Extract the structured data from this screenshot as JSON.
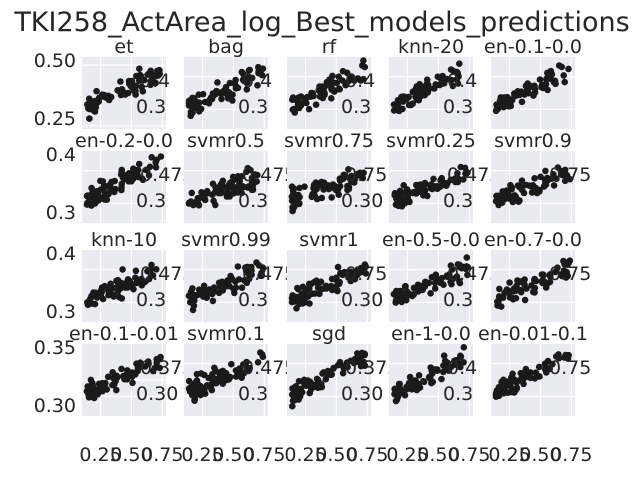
{
  "chart_data": {
    "type": "scatter",
    "title": "TKI258_ActArea_log_Best_models_predictions",
    "colors": {
      "panel_bg": "#eaeaf2",
      "grid": "#ffffff",
      "marker": "#1a1a1a",
      "text": "#262626"
    },
    "grid": true,
    "shared_x_ticks": [
      "0.25",
      "0.50",
      "0.75"
    ],
    "panels": [
      {
        "title": "et",
        "yticks": [
          "0.25",
          "0.50"
        ],
        "inset_labels": [
          "0.4",
          "0.3"
        ],
        "approx_x_range": [
          0.1,
          0.75
        ],
        "approx_y_range": [
          0.25,
          0.52
        ]
      },
      {
        "title": "bag",
        "yticks": [],
        "inset_labels": [
          "0.4",
          "0.3"
        ],
        "approx_x_range": [
          0.1,
          0.75
        ],
        "approx_y_range": [
          0.25,
          0.45
        ]
      },
      {
        "title": "rf",
        "yticks": [],
        "inset_labels": [
          "0.4",
          "0.3"
        ],
        "approx_x_range": [
          0.1,
          0.75
        ],
        "approx_y_range": [
          0.25,
          0.45
        ]
      },
      {
        "title": "knn-20",
        "yticks": [],
        "inset_labels": [
          "0.4",
          "0.3"
        ],
        "approx_x_range": [
          0.1,
          0.75
        ],
        "approx_y_range": [
          0.25,
          0.45
        ]
      },
      {
        "title": "en-0.1-0.0",
        "yticks": [],
        "inset_labels": [],
        "approx_x_range": [
          0.1,
          0.75
        ],
        "approx_y_range": [
          0.25,
          0.45
        ]
      },
      {
        "title": "en-0.2-0.0",
        "yticks": [
          "0.3",
          "0.4"
        ],
        "inset_labels": [
          "0.475",
          "0.3"
        ],
        "approx_x_range": [
          0.1,
          0.75
        ],
        "approx_y_range": [
          0.25,
          0.45
        ]
      },
      {
        "title": "svmr0.5",
        "yticks": [],
        "inset_labels": [
          "0.475",
          "0.3"
        ],
        "approx_x_range": [
          0.1,
          0.75
        ],
        "approx_y_range": [
          0.25,
          0.45
        ]
      },
      {
        "title": "svmr0.75",
        "yticks": [],
        "inset_labels": [
          "0.75",
          "0.30"
        ],
        "approx_x_range": [
          0.1,
          0.75
        ],
        "approx_y_range": [
          0.25,
          0.45
        ]
      },
      {
        "title": "svmr0.25",
        "yticks": [],
        "inset_labels": [
          "0.475",
          "0.3"
        ],
        "approx_x_range": [
          0.1,
          0.75
        ],
        "approx_y_range": [
          0.25,
          0.45
        ]
      },
      {
        "title": "svmr0.9",
        "yticks": [],
        "inset_labels": [
          "0.75"
        ],
        "approx_x_range": [
          0.1,
          0.75
        ],
        "approx_y_range": [
          0.25,
          0.45
        ]
      },
      {
        "title": "knn-10",
        "yticks": [
          "0.3",
          "0.4"
        ],
        "inset_labels": [
          "0.475",
          "0.3"
        ],
        "approx_x_range": [
          0.1,
          0.75
        ],
        "approx_y_range": [
          0.25,
          0.45
        ]
      },
      {
        "title": "svmr0.99",
        "yticks": [],
        "inset_labels": [
          "0.475",
          "0.3"
        ],
        "approx_x_range": [
          0.1,
          0.75
        ],
        "approx_y_range": [
          0.25,
          0.45
        ]
      },
      {
        "title": "svmr1",
        "yticks": [],
        "inset_labels": [
          "0.75",
          "0.30"
        ],
        "approx_x_range": [
          0.1,
          0.75
        ],
        "approx_y_range": [
          0.25,
          0.45
        ]
      },
      {
        "title": "en-0.5-0.0",
        "yticks": [],
        "inset_labels": [
          "0.475",
          "0.3"
        ],
        "approx_x_range": [
          0.1,
          0.75
        ],
        "approx_y_range": [
          0.25,
          0.45
        ]
      },
      {
        "title": "en-0.7-0.0",
        "yticks": [],
        "inset_labels": [
          "0.75"
        ],
        "approx_x_range": [
          0.1,
          0.75
        ],
        "approx_y_range": [
          0.25,
          0.45
        ]
      },
      {
        "title": "en-0.1-0.01",
        "yticks": [
          "0.30",
          "0.35"
        ],
        "inset_labels": [
          "0.375",
          "0.30"
        ],
        "approx_x_range": [
          0.1,
          0.75
        ],
        "approx_y_range": [
          0.25,
          0.45
        ]
      },
      {
        "title": "svmr0.1",
        "yticks": [],
        "inset_labels": [
          "0.475",
          "0.3"
        ],
        "approx_x_range": [
          0.1,
          0.75
        ],
        "approx_y_range": [
          0.25,
          0.45
        ]
      },
      {
        "title": "sgd",
        "yticks": [],
        "inset_labels": [
          "0.375",
          "0.30"
        ],
        "approx_x_range": [
          0.1,
          0.75
        ],
        "approx_y_range": [
          0.25,
          0.45
        ]
      },
      {
        "title": "en-1-0.0",
        "yticks": [],
        "inset_labels": [
          "0.4",
          "0.3"
        ],
        "approx_x_range": [
          0.1,
          0.75
        ],
        "approx_y_range": [
          0.25,
          0.45
        ]
      },
      {
        "title": "en-0.01-0.1",
        "yticks": [],
        "inset_labels": [
          "0.75"
        ],
        "approx_x_range": [
          0.1,
          0.75
        ],
        "approx_y_range": [
          0.25,
          0.45
        ]
      }
    ]
  }
}
